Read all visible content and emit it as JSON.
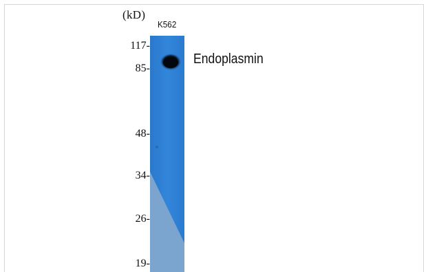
{
  "unit_label": "(kD)",
  "lane_label": "K562",
  "band_label": "Endoplasmin",
  "markers": [
    {
      "label": "117-"
    },
    {
      "label": "85-"
    },
    {
      "label": "48-"
    },
    {
      "label": "34-"
    },
    {
      "label": "26-"
    },
    {
      "label": "19-"
    }
  ],
  "colors": {
    "lane_blue": "#2f80d5",
    "lane_light": "#7ba5cf",
    "band": "#050a14"
  }
}
